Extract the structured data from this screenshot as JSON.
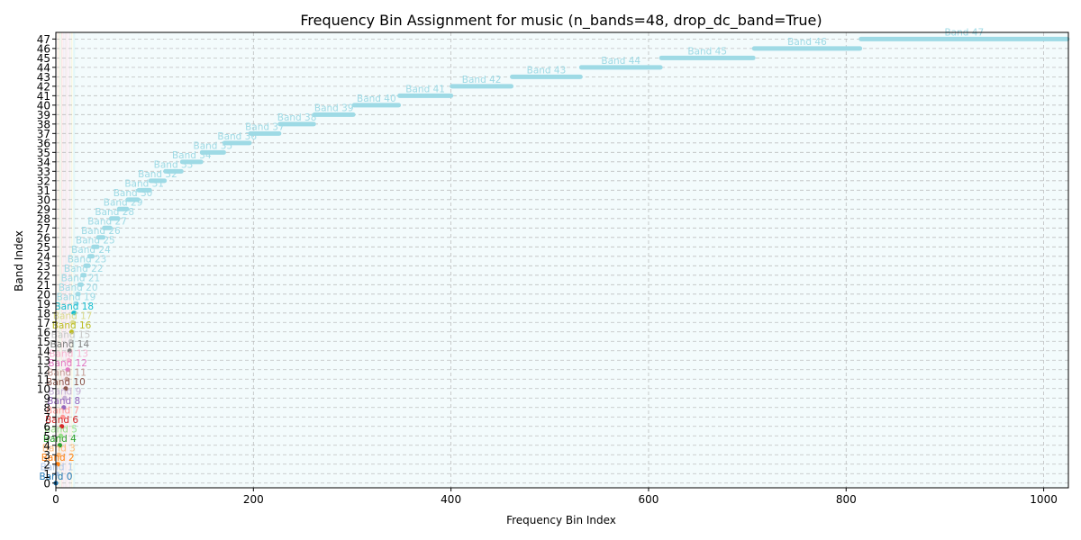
{
  "chart_data": {
    "type": "scatter",
    "title": "Frequency Bin Assignment for music (n_bands=48, drop_dc_band=True)",
    "xlabel": "Frequency Bin Index",
    "ylabel": "Band Index",
    "xlim": [
      0,
      1025
    ],
    "ylim": [
      -0.5,
      47.7
    ],
    "x_ticks": [
      0,
      200,
      400,
      600,
      800,
      1000
    ],
    "y_ticks": [
      0,
      1,
      2,
      3,
      4,
      5,
      6,
      7,
      8,
      9,
      10,
      11,
      12,
      13,
      14,
      15,
      16,
      17,
      18,
      19,
      20,
      21,
      22,
      23,
      24,
      25,
      26,
      27,
      28,
      29,
      30,
      31,
      32,
      33,
      34,
      35,
      36,
      37,
      38,
      39,
      40,
      41,
      42,
      43,
      44,
      45,
      46,
      47
    ],
    "grid": true,
    "bands": [
      {
        "band": 0,
        "label": "Band 0",
        "color": "#1f77b4",
        "start": 0,
        "end": 0
      },
      {
        "band": 1,
        "label": "Band 1",
        "color": "#aec7e8",
        "start": 1,
        "end": 1
      },
      {
        "band": 2,
        "label": "Band 2",
        "color": "#ff7f0e",
        "start": 2,
        "end": 2
      },
      {
        "band": 3,
        "label": "Band 3",
        "color": "#ffbb78",
        "start": 3,
        "end": 3
      },
      {
        "band": 4,
        "label": "Band 4",
        "color": "#2ca02c",
        "start": 4,
        "end": 4
      },
      {
        "band": 5,
        "label": "Band 5",
        "color": "#98df8a",
        "start": 5,
        "end": 5
      },
      {
        "band": 6,
        "label": "Band 6",
        "color": "#d62728",
        "start": 6,
        "end": 6
      },
      {
        "band": 7,
        "label": "Band 7",
        "color": "#ff9896",
        "start": 7,
        "end": 7
      },
      {
        "band": 8,
        "label": "Band 8",
        "color": "#9467bd",
        "start": 8,
        "end": 8
      },
      {
        "band": 9,
        "label": "Band 9",
        "color": "#c5b0d5",
        "start": 9,
        "end": 9
      },
      {
        "band": 10,
        "label": "Band 10",
        "color": "#8c564b",
        "start": 10,
        "end": 10
      },
      {
        "band": 11,
        "label": "Band 11",
        "color": "#c49c94",
        "start": 11,
        "end": 11
      },
      {
        "band": 12,
        "label": "Band 12",
        "color": "#e377c2",
        "start": 12,
        "end": 12
      },
      {
        "band": 13,
        "label": "Band 13",
        "color": "#f7b6d2",
        "start": 13,
        "end": 13
      },
      {
        "band": 14,
        "label": "Band 14",
        "color": "#7f7f7f",
        "start": 14,
        "end": 14
      },
      {
        "band": 15,
        "label": "Band 15",
        "color": "#c7c7c7",
        "start": 15,
        "end": 15
      },
      {
        "band": 16,
        "label": "Band 16",
        "color": "#bcbd22",
        "start": 16,
        "end": 16
      },
      {
        "band": 17,
        "label": "Band 17",
        "color": "#dbdb8d",
        "start": 17,
        "end": 17
      },
      {
        "band": 18,
        "label": "Band 18",
        "color": "#17becf",
        "start": 18,
        "end": 19
      },
      {
        "band": 19,
        "label": "Band 19",
        "color": "#9edae5",
        "start": 20,
        "end": 21
      },
      {
        "band": 20,
        "label": "Band 20",
        "color": "#9edae5",
        "start": 22,
        "end": 23
      },
      {
        "band": 21,
        "label": "Band 21",
        "color": "#9edae5",
        "start": 24,
        "end": 26
      },
      {
        "band": 22,
        "label": "Band 22",
        "color": "#9edae5",
        "start": 27,
        "end": 29
      },
      {
        "band": 23,
        "label": "Band 23",
        "color": "#9edae5",
        "start": 30,
        "end": 33
      },
      {
        "band": 24,
        "label": "Band 24",
        "color": "#9edae5",
        "start": 34,
        "end": 37
      },
      {
        "band": 25,
        "label": "Band 25",
        "color": "#9edae5",
        "start": 38,
        "end": 42
      },
      {
        "band": 26,
        "label": "Band 26",
        "color": "#9edae5",
        "start": 43,
        "end": 48
      },
      {
        "band": 27,
        "label": "Band 27",
        "color": "#9edae5",
        "start": 49,
        "end": 55
      },
      {
        "band": 28,
        "label": "Band 28",
        "color": "#9edae5",
        "start": 56,
        "end": 63
      },
      {
        "band": 29,
        "label": "Band 29",
        "color": "#9edae5",
        "start": 64,
        "end": 72
      },
      {
        "band": 30,
        "label": "Band 30",
        "color": "#9edae5",
        "start": 73,
        "end": 83
      },
      {
        "band": 31,
        "label": "Band 31",
        "color": "#9edae5",
        "start": 84,
        "end": 95
      },
      {
        "band": 32,
        "label": "Band 32",
        "color": "#9edae5",
        "start": 96,
        "end": 110
      },
      {
        "band": 33,
        "label": "Band 33",
        "color": "#9edae5",
        "start": 111,
        "end": 127
      },
      {
        "band": 34,
        "label": "Band 34",
        "color": "#9edae5",
        "start": 128,
        "end": 147
      },
      {
        "band": 35,
        "label": "Band 35",
        "color": "#9edae5",
        "start": 148,
        "end": 170
      },
      {
        "band": 36,
        "label": "Band 36",
        "color": "#9edae5",
        "start": 171,
        "end": 196
      },
      {
        "band": 37,
        "label": "Band 37",
        "color": "#9edae5",
        "start": 197,
        "end": 226
      },
      {
        "band": 38,
        "label": "Band 38",
        "color": "#9edae5",
        "start": 227,
        "end": 261
      },
      {
        "band": 39,
        "label": "Band 39",
        "color": "#9edae5",
        "start": 262,
        "end": 301
      },
      {
        "band": 40,
        "label": "Band 40",
        "color": "#9edae5",
        "start": 302,
        "end": 347
      },
      {
        "band": 41,
        "label": "Band 41",
        "color": "#9edae5",
        "start": 348,
        "end": 400
      },
      {
        "band": 42,
        "label": "Band 42",
        "color": "#9edae5",
        "start": 401,
        "end": 461
      },
      {
        "band": 43,
        "label": "Band 43",
        "color": "#9edae5",
        "start": 462,
        "end": 531
      },
      {
        "band": 44,
        "label": "Band 44",
        "color": "#9edae5",
        "start": 532,
        "end": 612
      },
      {
        "band": 45,
        "label": "Band 45",
        "color": "#9edae5",
        "start": 613,
        "end": 706
      },
      {
        "band": 46,
        "label": "Band 46",
        "color": "#9edae5",
        "start": 707,
        "end": 814
      },
      {
        "band": 47,
        "label": "Band 47",
        "color": "#9edae5",
        "start": 815,
        "end": 1024
      }
    ]
  }
}
